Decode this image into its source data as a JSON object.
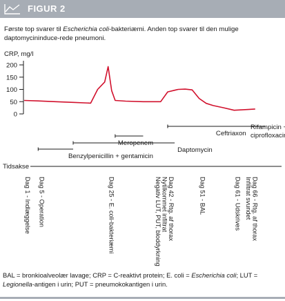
{
  "figure": {
    "label": "FIGUR 2",
    "caption_part1": "Første top svarer til ",
    "caption_italic": "Escherichia coli",
    "caption_part2": "-bakteriæmi. Anden top svarer til den mulige daptomycininduce-rede pneumoni.",
    "footnote_part1": "BAL = bronkioalveolær lavage; CRP = C-reaktivt protein; E. coli = ",
    "footnote_italic1": "Escherichia coli",
    "footnote_part2": "; LUT = ",
    "footnote_italic2": "Legionella",
    "footnote_part3": "-antigen i urin; PUT = pneumokokantigen i urin.",
    "colors": {
      "line": "#d1102c",
      "bar": "#a7adb5",
      "text": "#1a1a1a"
    }
  },
  "chart_data": {
    "type": "line",
    "ylabel": "CRP, mg/l",
    "ylim": [
      0,
      200
    ],
    "yticks": [
      0,
      50,
      100,
      150,
      200
    ],
    "x_axis_label": "Tidsakse",
    "xlim": [
      1,
      70
    ],
    "series": [
      {
        "x": [
          1,
          5,
          10,
          15,
          20,
          22,
          24,
          25,
          26,
          27,
          30,
          35,
          40,
          42,
          45,
          47,
          49,
          51,
          53,
          55,
          58,
          61,
          65,
          67
        ],
        "y": [
          55,
          53,
          50,
          47,
          44,
          100,
          130,
          193,
          95,
          55,
          52,
          50,
          50,
          90,
          100,
          101,
          98,
          63,
          43,
          34,
          25,
          15,
          18,
          20
        ]
      }
    ],
    "treatments": [
      {
        "label": "Benzylpenicillin + gentamicin",
        "start": 5,
        "end": 15
      },
      {
        "label": "Daptomycin",
        "start": 15,
        "end": 44
      },
      {
        "label": "Meropenem",
        "start": 27,
        "end": 35
      },
      {
        "label": "Ceftriaxon",
        "start": 42,
        "end": 55
      },
      {
        "label": "Rifampicin +\nciprofloxacin",
        "start": 42,
        "end": 70
      }
    ],
    "events": [
      {
        "day": 1,
        "label": "Dag 1 - Indlæggelse"
      },
      {
        "day": 5,
        "label": "Dag 5 - Operation"
      },
      {
        "day": 25,
        "label": "Dag 25 - E. coli-bakteriæmi"
      },
      {
        "day": 42,
        "label": "Dag 42 - Rtg. af thorax\nNytilkommet infiltrat\nNegativ LUT, PUT, bloddyrkning"
      },
      {
        "day": 51,
        "label": "Dag 51 - BAL"
      },
      {
        "day": 61,
        "label": "Dag 61 - Udskrives"
      },
      {
        "day": 66,
        "label": "Dag 66 - Rtg. af thorax\nInfiltrat svundet"
      }
    ]
  }
}
